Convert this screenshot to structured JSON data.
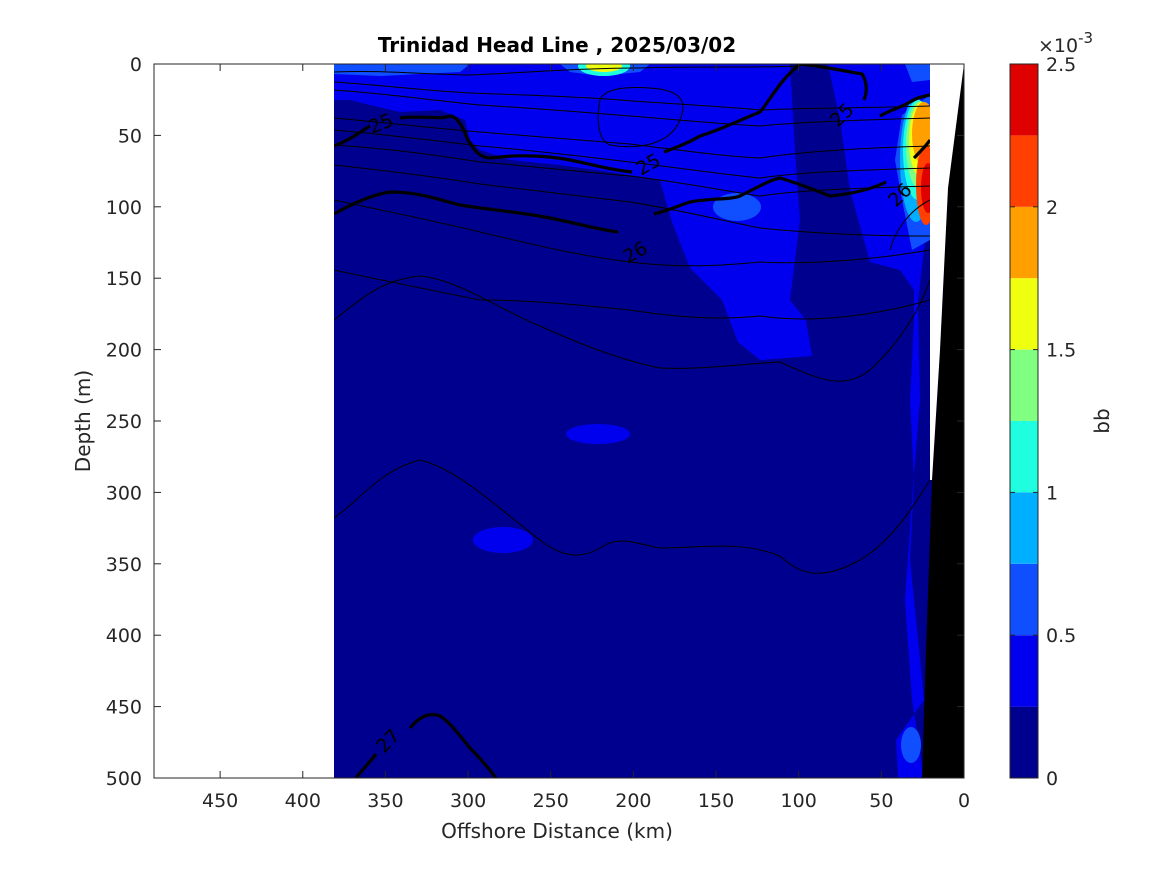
{
  "chart_data": {
    "type": "heatmap",
    "title": "Trinidad Head Line , 2025/03/02",
    "xlabel": "Offshore Distance (km)",
    "ylabel": "Depth (m)",
    "xlim": [
      490,
      0
    ],
    "ylim": [
      0,
      500
    ],
    "x_reversed": true,
    "y_reversed": true,
    "x_ticks": [
      "450",
      "400",
      "350",
      "300",
      "250",
      "200",
      "150",
      "100",
      "50",
      "0"
    ],
    "y_ticks": [
      "0",
      "50",
      "100",
      "150",
      "200",
      "250",
      "300",
      "350",
      "400",
      "450",
      "500"
    ],
    "data_extent_km": [
      380,
      0
    ],
    "colorbar": {
      "label": "bb",
      "exponent_label": "×10",
      "exponent_power": "-3",
      "range": [
        0,
        2.5
      ],
      "ticks": [
        "0",
        "0.5",
        "1",
        "1.5",
        "2",
        "2.5"
      ],
      "levels": [
        0,
        0.25,
        0.5,
        0.75,
        1.0,
        1.25,
        1.5,
        1.75,
        2.0,
        2.25,
        2.5
      ],
      "colors": [
        "#00008f",
        "#0000ef",
        "#0f4fff",
        "#00afff",
        "#1fffdf",
        "#80ff80",
        "#efff10",
        "#ffa000",
        "#ff4000",
        "#df0000"
      ]
    },
    "contour_labels": [
      "25",
      "25",
      "25",
      "26",
      "26",
      "27"
    ],
    "bottom_color": "#000000"
  }
}
